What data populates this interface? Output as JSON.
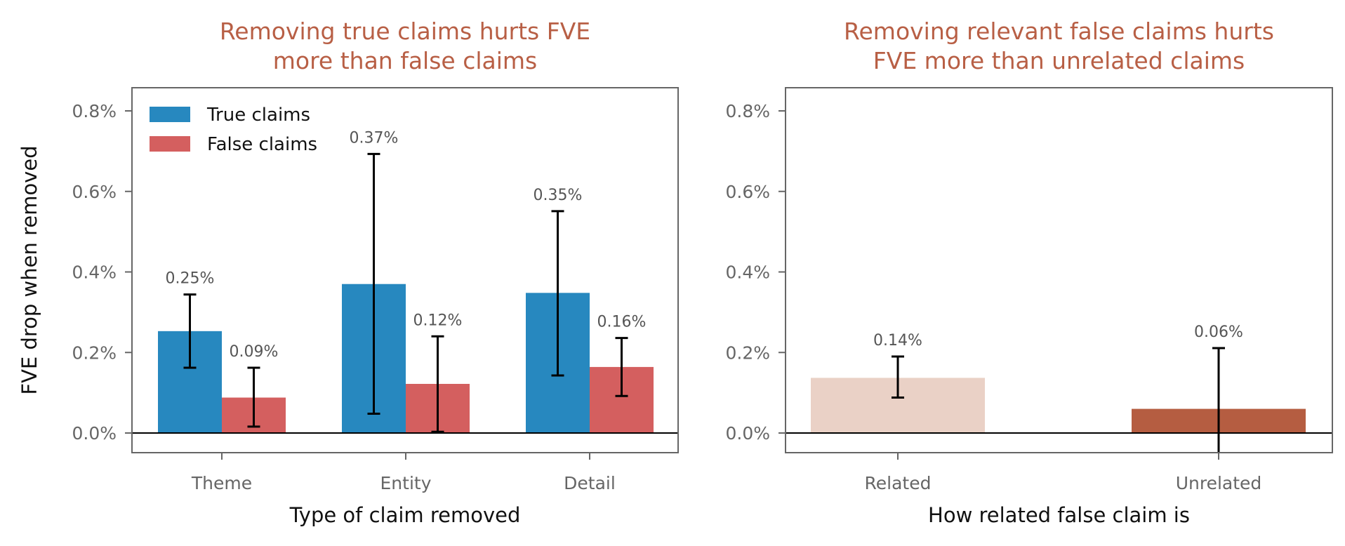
{
  "chart_data": [
    {
      "type": "bar",
      "title_lines": [
        "Removing true claims hurts FVE",
        "more than false claims"
      ],
      "xlabel": "Type of claim removed",
      "ylabel": "FVE drop when removed",
      "ylim": [
        -0.05,
        0.86
      ],
      "yticks": [
        "0.0%",
        "0.2%",
        "0.4%",
        "0.6%",
        "0.8%"
      ],
      "ytick_values": [
        0.0,
        0.2,
        0.4,
        0.6,
        0.8
      ],
      "categories": [
        "Theme",
        "Entity",
        "Detail"
      ],
      "legend_position": "top-left",
      "series": [
        {
          "name": "True claims",
          "color": "#2788bf",
          "values": [
            0.253,
            0.37,
            0.348
          ],
          "err_low": [
            0.162,
            0.048,
            0.143
          ],
          "err_high": [
            0.344,
            0.693,
            0.551
          ],
          "labels": [
            "0.25%",
            "0.37%",
            "0.35%"
          ]
        },
        {
          "name": "False claims",
          "color": "#d45f5f",
          "values": [
            0.088,
            0.122,
            0.164
          ],
          "err_low": [
            0.016,
            0.003,
            0.092
          ],
          "err_high": [
            0.162,
            0.24,
            0.236
          ],
          "labels": [
            "0.09%",
            "0.12%",
            "0.16%"
          ]
        }
      ]
    },
    {
      "type": "bar",
      "title_lines": [
        "Removing relevant false claims hurts",
        "FVE more than unrelated claims"
      ],
      "xlabel": "How related false claim is",
      "ylabel": "",
      "ylim": [
        -0.05,
        0.86
      ],
      "yticks": [
        "0.0%",
        "0.2%",
        "0.4%",
        "0.6%",
        "0.8%"
      ],
      "ytick_values": [
        0.0,
        0.2,
        0.4,
        0.6,
        0.8
      ],
      "categories": [
        "Related",
        "Unrelated"
      ],
      "bars": [
        {
          "value": 0.137,
          "err_low": 0.088,
          "err_high": 0.19,
          "label": "0.14%",
          "color": "#ead1c6"
        },
        {
          "value": 0.06,
          "err_low": -0.05,
          "err_high": 0.211,
          "label": "0.06%",
          "color": "#b55d41"
        }
      ]
    }
  ]
}
